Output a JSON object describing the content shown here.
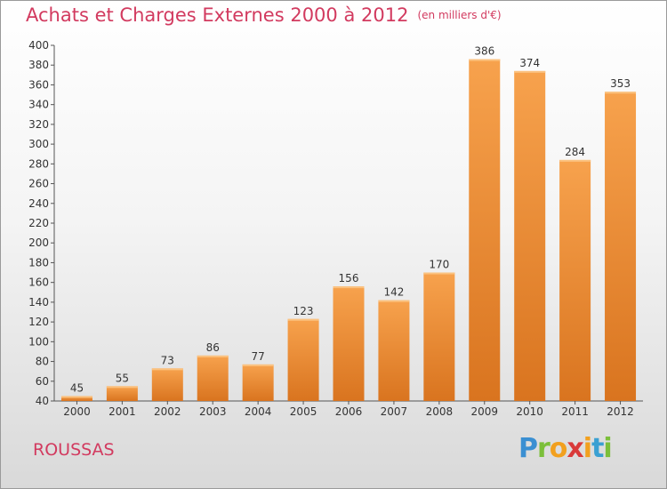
{
  "title": "Achats et Charges Externes 2000 à 2012",
  "unit": "(en milliers d'€)",
  "commune": "ROUSSAS",
  "logo": {
    "p": "P",
    "r": "r",
    "o": "o",
    "x": "x",
    "i1": "i",
    "t": "t",
    "i2": "i"
  },
  "colors": {
    "bar_light": "#f7a24d",
    "bar_dark": "#d9741f",
    "title": "#d23a5f"
  },
  "chart_data": {
    "type": "bar",
    "categories": [
      "2000",
      "2001",
      "2002",
      "2003",
      "2004",
      "2005",
      "2006",
      "2007",
      "2008",
      "2009",
      "2010",
      "2011",
      "2012"
    ],
    "values": [
      45,
      55,
      73,
      86,
      77,
      123,
      156,
      142,
      170,
      386,
      374,
      284,
      353
    ],
    "ylim": [
      40,
      400
    ],
    "yticks": [
      40,
      60,
      80,
      100,
      120,
      140,
      160,
      180,
      200,
      220,
      240,
      260,
      280,
      300,
      320,
      340,
      360,
      380,
      400
    ],
    "grid": false,
    "data_labels": true
  }
}
